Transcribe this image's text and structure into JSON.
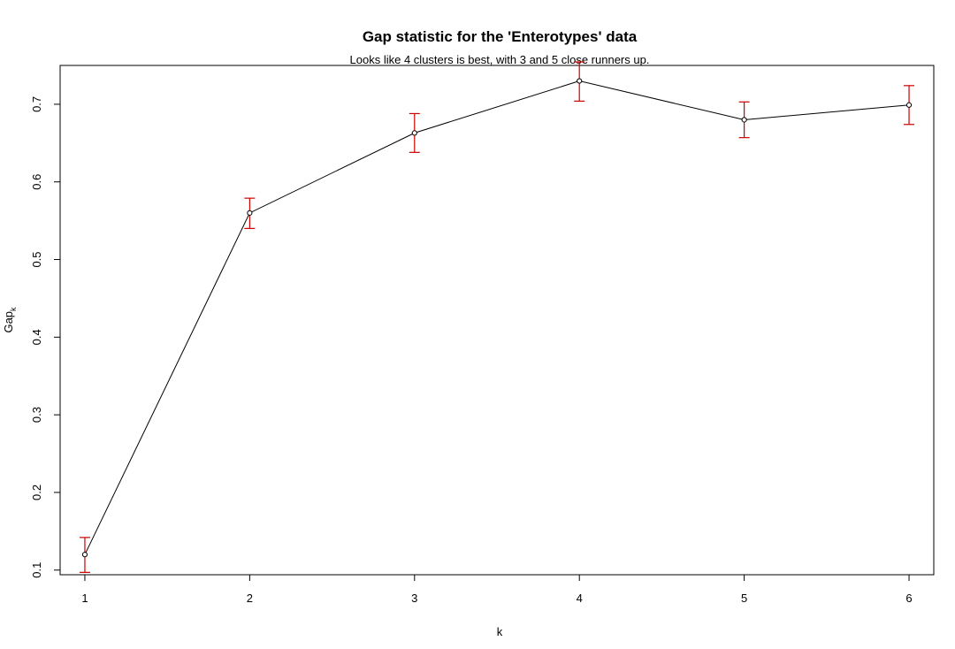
{
  "chart_data": {
    "type": "line",
    "title": "Gap statistic for the 'Enterotypes' data",
    "subtitle": "Looks like 4 clusters is best, with 3 and 5 close runners up.",
    "xlabel": "k",
    "ylabel": "Gap",
    "ylabel_subscript": "k",
    "xlim": [
      0.85,
      6.15
    ],
    "ylim": [
      0.094,
      0.75
    ],
    "x_ticks": [
      1,
      2,
      3,
      4,
      5,
      6
    ],
    "y_ticks": [
      0.1,
      0.2,
      0.3,
      0.4,
      0.5,
      0.6,
      0.7
    ],
    "grid": false,
    "legend": "none",
    "series": [
      {
        "x": [
          1,
          2,
          3,
          4,
          5,
          6
        ],
        "y": [
          0.12,
          0.56,
          0.663,
          0.73,
          0.68,
          0.699
        ],
        "y_lower": [
          0.097,
          0.54,
          0.638,
          0.704,
          0.657,
          0.674
        ],
        "y_upper": [
          0.142,
          0.579,
          0.688,
          0.756,
          0.703,
          0.724
        ]
      }
    ],
    "colors": {
      "line": "#000000",
      "points": "#000000",
      "error_bars": "#cc0000"
    }
  }
}
